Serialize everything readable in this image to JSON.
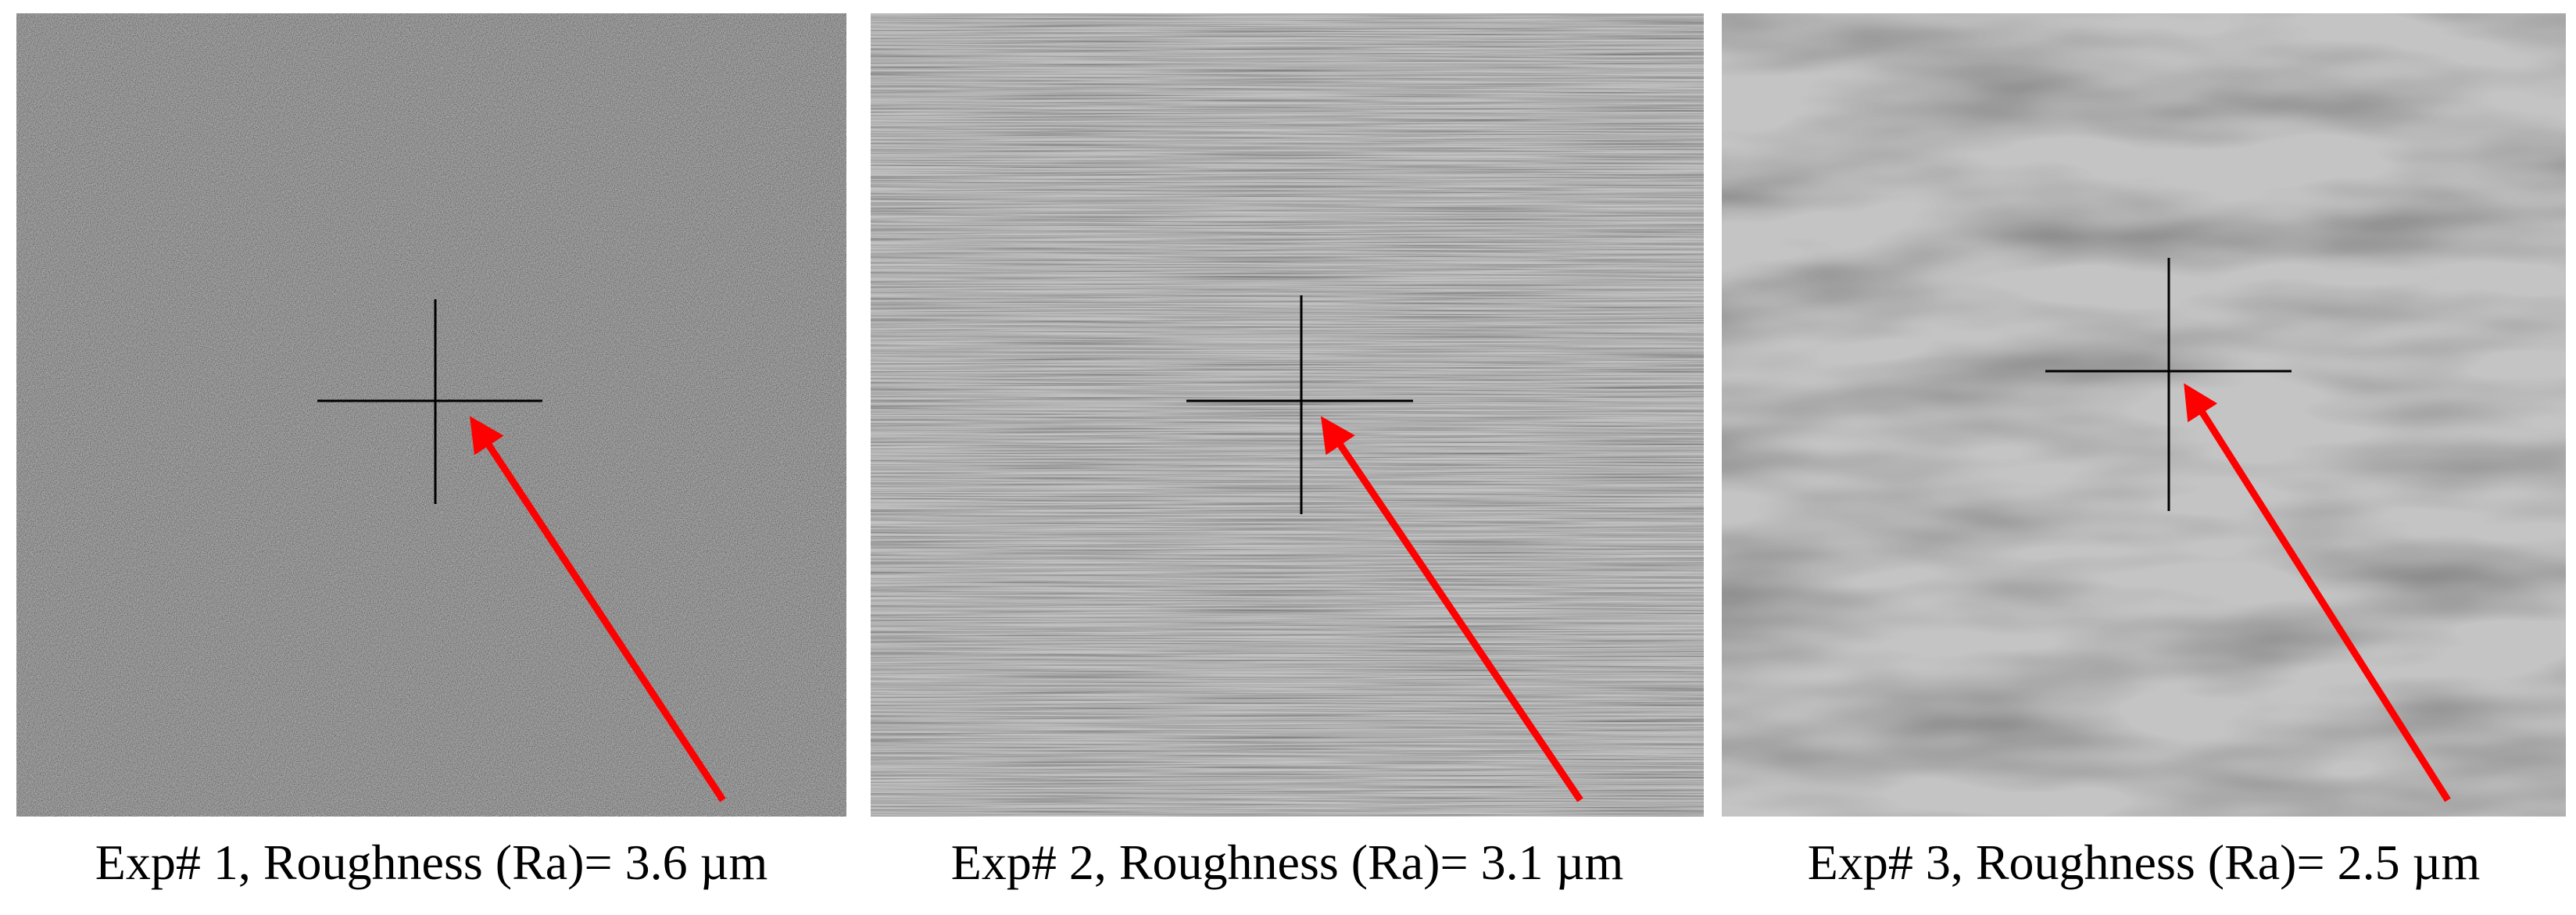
{
  "panels": [
    {
      "caption": "Exp# 1, Roughness (Ra)= 3.6 µm"
    },
    {
      "caption": "Exp# 2, Roughness (Ra)= 3.1 µm"
    },
    {
      "caption": "Exp# 3, Roughness (Ra)= 2.5 µm"
    }
  ]
}
